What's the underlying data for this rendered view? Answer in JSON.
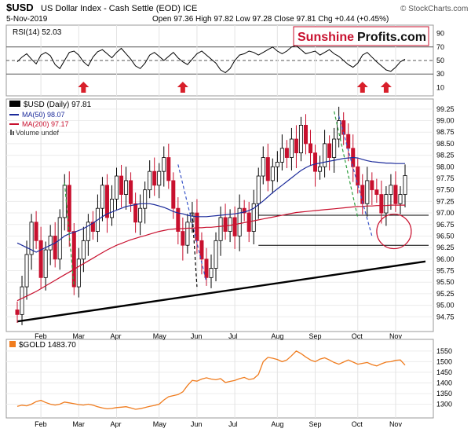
{
  "header": {
    "symbol": "$USD",
    "name": "US Dollar Index - Cash Settle (EOD) ICE",
    "source": "© StockCharts.com",
    "date": "5-Nov-2019",
    "ohlc": "Open 97.36  High 97.82  Low 97.28  Close 97.81  Chg +0.44 (+0.45%)"
  },
  "logo": {
    "part1": "Sunshine",
    "part2": "Profits.com"
  },
  "colors": {
    "price_up": "#000000",
    "price_down": "#c8102e",
    "ma50": "#1c2b9b",
    "ma200": "#c8102e",
    "gold": "#f07c1e",
    "rsi": "#000000",
    "arrow": "#d81f2a",
    "green_dash": "#2e9e3e",
    "blue_dash": "#3a56c8",
    "logo_red": "#c8102e"
  },
  "chart_data": [
    {
      "type": "line",
      "panel": "rsi",
      "label": "RSI(14) 52.03",
      "ylim": [
        0,
        100
      ],
      "levels": [
        70,
        50,
        30
      ],
      "yticks": [
        "90",
        "70",
        "50",
        "30",
        "10"
      ],
      "series": [
        {
          "name": "RSI(14)",
          "values": [
            48,
            55,
            60,
            52,
            45,
            58,
            62,
            57,
            44,
            38,
            50,
            62,
            64,
            58,
            48,
            42,
            55,
            63,
            66,
            60,
            54,
            62,
            68,
            60,
            52,
            42,
            38,
            46,
            58,
            62,
            56,
            50,
            56,
            62,
            54,
            48,
            44,
            52,
            60,
            64,
            58,
            52,
            46,
            36,
            32,
            38,
            50,
            58,
            60,
            64,
            62,
            58,
            62,
            66,
            70,
            64,
            60,
            64,
            70,
            72,
            66,
            60,
            62,
            64,
            58,
            62,
            66,
            60,
            56,
            50,
            44,
            40,
            46,
            58,
            62,
            55,
            48,
            42,
            36,
            34,
            40,
            48,
            52
          ]
        }
      ],
      "markers": [
        {
          "label": "up-arrow",
          "index": 14
        },
        {
          "label": "up-arrow",
          "index": 35
        },
        {
          "label": "up-arrow",
          "index": 73
        },
        {
          "label": "up-arrow",
          "index": 78
        }
      ]
    },
    {
      "type": "candlestick",
      "panel": "price",
      "title": "$USD (Daily) 97.81",
      "legend": [
        "$USD (Daily) 97.81",
        "MA(50) 98.07",
        "MA(200) 97.17",
        "Volume undef"
      ],
      "ylim": [
        94.5,
        99.4
      ],
      "yticks": [
        "99.25",
        "99.00",
        "98.75",
        "98.50",
        "98.25",
        "98.00",
        "97.75",
        "97.50",
        "97.25",
        "97.00",
        "96.75",
        "96.50",
        "96.25",
        "96.00",
        "95.75",
        "95.50",
        "95.25",
        "95.00",
        "94.75"
      ],
      "close": [
        94.8,
        95.4,
        96.1,
        96.8,
        96.4,
        95.6,
        96.2,
        96.5,
        96.0,
        96.9,
        97.6,
        96.6,
        95.4,
        96.0,
        96.4,
        96.8,
        96.6,
        97.1,
        97.6,
        96.9,
        97.3,
        97.8,
        97.4,
        97.7,
        97.2,
        96.8,
        97.1,
        97.5,
        97.9,
        97.6,
        97.9,
        98.2,
        97.7,
        97.1,
        96.6,
        96.3,
        96.8,
        97.0,
        96.4,
        96.0,
        95.6,
        95.8,
        96.4,
        96.9,
        96.6,
        96.9,
        96.5,
        97.1,
        97.0,
        96.6,
        97.2,
        97.8,
        98.2,
        97.7,
        98.0,
        98.1,
        98.4,
        98.2,
        98.6,
        98.3,
        98.9,
        98.5,
        98.3,
        97.9,
        98.0,
        98.5,
        98.2,
        98.6,
        99.0,
        98.7,
        98.4,
        98.0,
        97.6,
        97.2,
        97.7,
        97.5,
        97.4,
        97.0,
        97.4,
        97.6,
        97.2,
        97.4,
        97.81
      ],
      "ma50": [
        96.35,
        96.3,
        96.25,
        96.2,
        96.15,
        96.2,
        96.25,
        96.3,
        96.35,
        96.42,
        96.5,
        96.55,
        96.58,
        96.62,
        96.66,
        96.72,
        96.78,
        96.85,
        96.92,
        96.98,
        97.02,
        97.06,
        97.1,
        97.14,
        97.16,
        97.18,
        97.2,
        97.2,
        97.2,
        97.18,
        97.15,
        97.12,
        97.08,
        97.03,
        97.0,
        96.98,
        96.95,
        96.93,
        96.92,
        96.92,
        96.92,
        96.93,
        96.94,
        96.95,
        96.96,
        96.97,
        96.98,
        97.0,
        97.02,
        97.05,
        97.1,
        97.18,
        97.26,
        97.35,
        97.44,
        97.52,
        97.6,
        97.68,
        97.76,
        97.84,
        97.92,
        97.98,
        98.03,
        98.06,
        98.08,
        98.1,
        98.12,
        98.14,
        98.16,
        98.18,
        98.19,
        98.2,
        98.19,
        98.16,
        98.13,
        98.11,
        98.1,
        98.09,
        98.08,
        98.08,
        98.07,
        98.07,
        98.07
      ],
      "ma200": [
        95.1,
        95.15,
        95.2,
        95.25,
        95.3,
        95.36,
        95.42,
        95.48,
        95.54,
        95.6,
        95.66,
        95.72,
        95.78,
        95.84,
        95.9,
        95.96,
        96.02,
        96.08,
        96.14,
        96.2,
        96.25,
        96.3,
        96.34,
        96.38,
        96.42,
        96.45,
        96.48,
        96.51,
        96.54,
        96.57,
        96.6,
        96.62,
        96.64,
        96.65,
        96.66,
        96.66,
        96.67,
        96.67,
        96.68,
        96.68,
        96.69,
        96.69,
        96.7,
        96.71,
        96.72,
        96.73,
        96.75,
        96.77,
        96.79,
        96.81,
        96.83,
        96.85,
        96.87,
        96.89,
        96.91,
        96.93,
        96.95,
        96.97,
        96.99,
        97.01,
        97.02,
        97.03,
        97.04,
        97.05,
        97.06,
        97.07,
        97.08,
        97.09,
        97.1,
        97.11,
        97.12,
        97.13,
        97.14,
        97.14,
        97.15,
        97.15,
        97.16,
        97.16,
        97.16,
        97.17,
        97.17,
        97.17,
        97.17
      ],
      "lines": [
        {
          "kind": "horizontal",
          "from_index": 51,
          "to_index": 82,
          "y": 96.95
        },
        {
          "kind": "horizontal",
          "from_index": 51,
          "to_index": 82,
          "y": 96.3
        },
        {
          "kind": "trend",
          "from": [
            0,
            94.65
          ],
          "to": [
            82,
            95.95
          ]
        }
      ],
      "highlight_circle": {
        "index": 78,
        "y": 96.6
      }
    },
    {
      "type": "line",
      "panel": "gold",
      "title": "$GOLD 1483.70",
      "ylim": [
        1250,
        1590
      ],
      "yticks": [
        "1550",
        "1500",
        "1450",
        "1400",
        "1350",
        "1300"
      ],
      "series": [
        {
          "name": "$GOLD",
          "values": [
            1290,
            1295,
            1292,
            1300,
            1312,
            1318,
            1308,
            1300,
            1296,
            1300,
            1310,
            1306,
            1302,
            1298,
            1296,
            1300,
            1295,
            1288,
            1282,
            1278,
            1280,
            1284,
            1286,
            1288,
            1282,
            1276,
            1279,
            1284,
            1290,
            1294,
            1300,
            1320,
            1335,
            1340,
            1345,
            1358,
            1388,
            1412,
            1408,
            1418,
            1424,
            1418,
            1415,
            1420,
            1402,
            1407,
            1412,
            1420,
            1426,
            1416,
            1420,
            1440,
            1500,
            1520,
            1516,
            1510,
            1500,
            1508,
            1528,
            1550,
            1538,
            1522,
            1508,
            1500,
            1512,
            1518,
            1508,
            1496,
            1488,
            1498,
            1508,
            1498,
            1488,
            1492,
            1496,
            1486,
            1480,
            1490,
            1498,
            1500,
            1506,
            1508,
            1483.7
          ]
        }
      ]
    }
  ],
  "x_axis": {
    "labels": [
      "Feb",
      "Mar",
      "Apr",
      "May",
      "Jun",
      "Jul",
      "Aug",
      "Sep",
      "Oct",
      "Nov"
    ]
  }
}
